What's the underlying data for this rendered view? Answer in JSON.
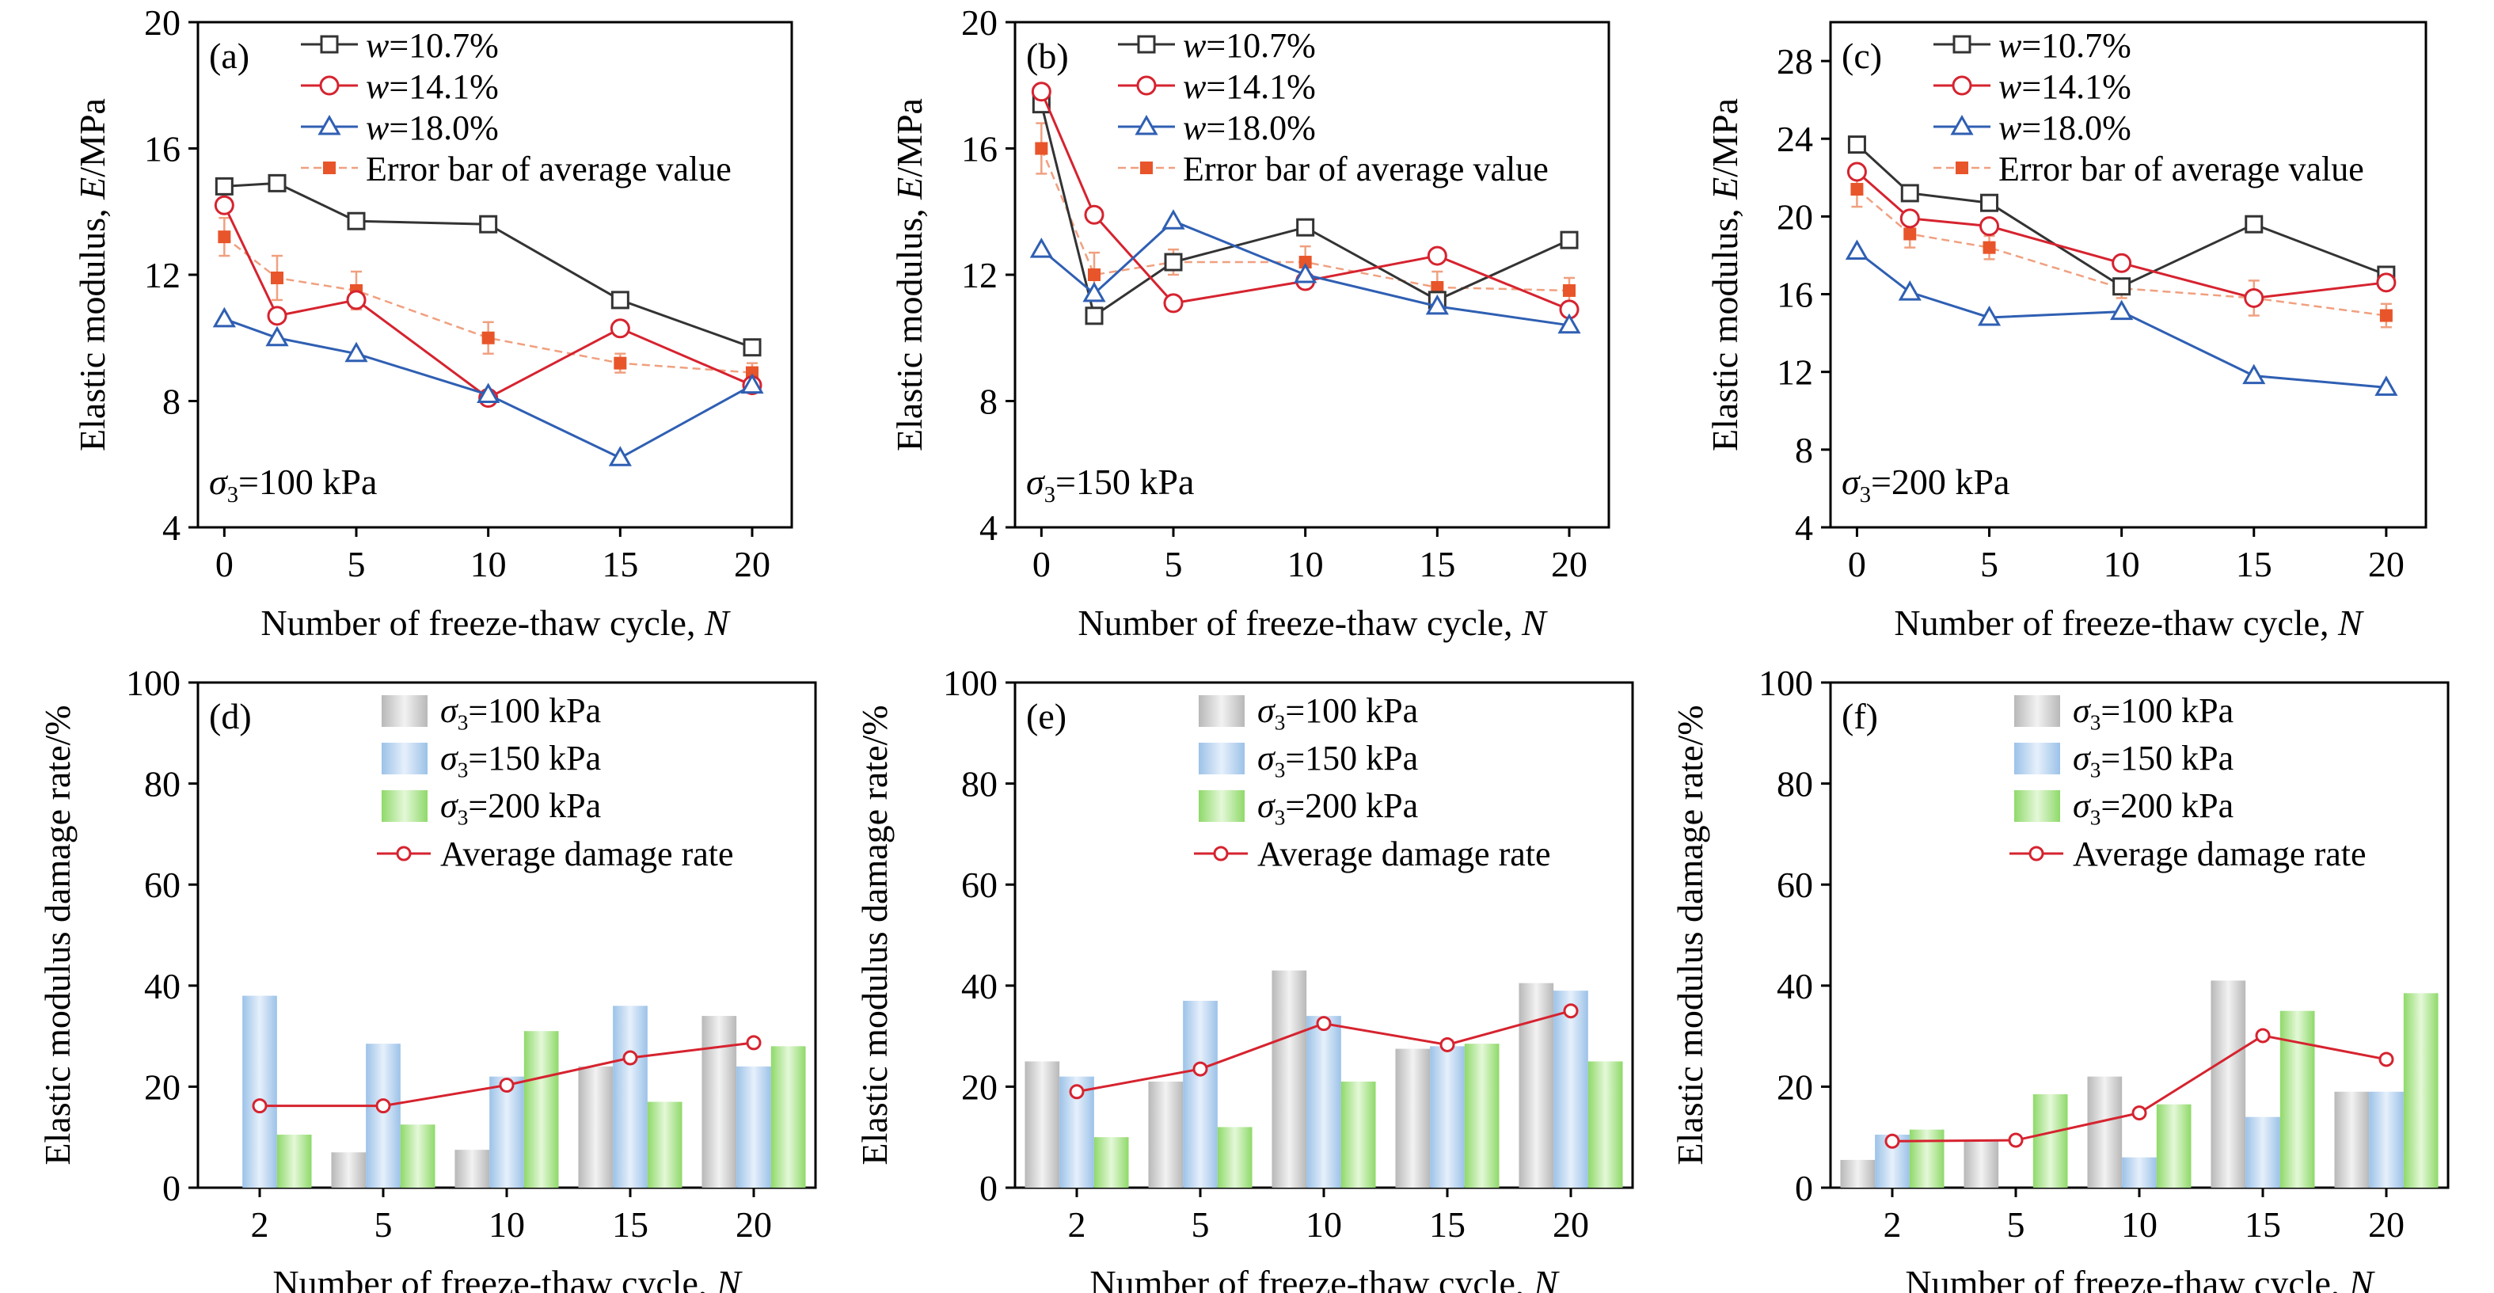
{
  "colors": {
    "w107": "#333333",
    "w141": "#d6232f",
    "w180": "#2f5fb3",
    "avg": "#e8552a",
    "avg_line": "#f0a080",
    "bar100": "#b8b8b8",
    "bar150": "#9cc2e8",
    "bar200": "#8fd96a",
    "damage_line": "#d6232f"
  },
  "chart_data": [
    {
      "type": "line",
      "panel_label": "(a)",
      "annotation": "=100 kPa",
      "xlabel": "Number of freeze-thaw cycle, ",
      "xlabel_italic": "N",
      "ylabel": "Elastic modulus, ",
      "ylabel_italic": "E",
      "ylabel_unit": "/MPa",
      "xlim": [
        -1,
        21.5
      ],
      "ylim": [
        4,
        20
      ],
      "xticks": [
        0,
        5,
        10,
        15,
        20
      ],
      "yticks": [
        4,
        8,
        12,
        16,
        20
      ],
      "x": [
        0,
        2,
        5,
        10,
        15,
        20
      ],
      "series": [
        {
          "name": "=10.7%",
          "marker": "square",
          "values": [
            14.8,
            14.9,
            13.7,
            13.6,
            11.2,
            9.7
          ]
        },
        {
          "name": "=14.1%",
          "marker": "circle",
          "values": [
            14.2,
            10.7,
            11.2,
            8.1,
            10.3,
            8.5
          ]
        },
        {
          "name": "=18.0%",
          "marker": "triangle",
          "values": [
            10.6,
            10.0,
            9.5,
            8.2,
            6.2,
            8.5
          ]
        }
      ],
      "average": {
        "name": "Error bar of average value",
        "values": [
          13.2,
          11.9,
          11.5,
          10.0,
          9.2,
          8.9
        ],
        "errors": [
          0.6,
          0.7,
          0.6,
          0.5,
          0.3,
          0.3
        ]
      }
    },
    {
      "type": "line",
      "panel_label": "(b)",
      "annotation": "=150 kPa",
      "xlabel": "Number of freeze-thaw cycle, ",
      "xlabel_italic": "N",
      "ylabel": "Elastic modulus, ",
      "ylabel_italic": "E",
      "ylabel_unit": "/MPa",
      "xlim": [
        -1,
        21.5
      ],
      "ylim": [
        4,
        20
      ],
      "xticks": [
        0,
        5,
        10,
        15,
        20
      ],
      "yticks": [
        4,
        8,
        12,
        16,
        20
      ],
      "x": [
        0,
        2,
        5,
        10,
        15,
        20
      ],
      "series": [
        {
          "name": "=10.7%",
          "marker": "square",
          "values": [
            17.4,
            10.7,
            12.4,
            13.5,
            11.2,
            13.1
          ]
        },
        {
          "name": "=14.1%",
          "marker": "circle",
          "values": [
            17.8,
            13.9,
            11.1,
            11.8,
            12.6,
            10.9
          ]
        },
        {
          "name": "=18.0%",
          "marker": "triangle",
          "values": [
            12.8,
            11.4,
            13.7,
            12.0,
            11.0,
            10.4
          ]
        }
      ],
      "average": {
        "name": "Error bar of average value",
        "values": [
          16.0,
          12.0,
          12.4,
          12.4,
          11.6,
          11.5
        ],
        "errors": [
          0.8,
          0.7,
          0.4,
          0.5,
          0.5,
          0.4
        ]
      }
    },
    {
      "type": "line",
      "panel_label": "(c)",
      "annotation": "=200 kPa",
      "xlabel": "Number of freeze-thaw cycle, ",
      "xlabel_italic": "N",
      "ylabel": "Elastic modulus, ",
      "ylabel_italic": "E",
      "ylabel_unit": "/MPa",
      "xlim": [
        -1,
        21.5
      ],
      "ylim": [
        4,
        30
      ],
      "xticks": [
        0,
        5,
        10,
        15,
        20
      ],
      "yticks": [
        4,
        8,
        12,
        16,
        20,
        24,
        28
      ],
      "x": [
        0,
        2,
        5,
        10,
        15,
        20
      ],
      "series": [
        {
          "name": "=10.7%",
          "marker": "square",
          "values": [
            23.7,
            21.2,
            20.7,
            16.4,
            19.6,
            17.0
          ]
        },
        {
          "name": "=14.1%",
          "marker": "circle",
          "values": [
            22.3,
            19.9,
            19.5,
            17.6,
            15.8,
            16.6
          ]
        },
        {
          "name": "=18.0%",
          "marker": "triangle",
          "values": [
            18.2,
            16.1,
            14.8,
            15.1,
            11.8,
            11.2
          ]
        }
      ],
      "average": {
        "name": "Error bar of average value",
        "values": [
          21.4,
          19.1,
          18.4,
          16.3,
          15.8,
          14.9
        ],
        "errors": [
          0.9,
          0.7,
          0.6,
          0.5,
          0.9,
          0.6
        ]
      }
    },
    {
      "type": "bar",
      "panel_label": "(d)",
      "xlabel": "Number of freeze-thaw cycle, ",
      "xlabel_italic": "N",
      "ylabel": "Elastic modulus damage rate/%",
      "ylim": [
        0,
        100
      ],
      "yticks": [
        0,
        20,
        40,
        60,
        80,
        100
      ],
      "categories": [
        "2",
        "5",
        "10",
        "15",
        "20"
      ],
      "series": [
        {
          "name": "=100 kPa",
          "values": [
            0,
            7,
            7.5,
            24,
            34
          ]
        },
        {
          "name": "=150 kPa",
          "values": [
            38,
            28.5,
            22,
            36,
            24
          ]
        },
        {
          "name": "=200 kPa",
          "values": [
            10.5,
            12.5,
            31,
            17,
            28
          ]
        }
      ],
      "line": {
        "name": "Average damage rate",
        "values": [
          16.2,
          16.2,
          20.3,
          25.7,
          28.7
        ]
      }
    },
    {
      "type": "bar",
      "panel_label": "(e)",
      "xlabel": "Number of freeze-thaw cycle, ",
      "xlabel_italic": "N",
      "ylabel": "Elastic modulus damage rate/%",
      "ylim": [
        0,
        100
      ],
      "yticks": [
        0,
        20,
        40,
        60,
        80,
        100
      ],
      "categories": [
        "2",
        "5",
        "10",
        "15",
        "20"
      ],
      "series": [
        {
          "name": "=100 kPa",
          "values": [
            25,
            21,
            43,
            27.5,
            40.5
          ]
        },
        {
          "name": "=150 kPa",
          "values": [
            22,
            37,
            34,
            28,
            39
          ]
        },
        {
          "name": "=200 kPa",
          "values": [
            10,
            12,
            21,
            28.5,
            25
          ]
        }
      ],
      "line": {
        "name": "Average damage rate",
        "values": [
          19,
          23.5,
          32.5,
          28.3,
          35
        ]
      }
    },
    {
      "type": "bar",
      "panel_label": "(f)",
      "xlabel": "Number of freeze-thaw cycle, ",
      "xlabel_italic": "N",
      "ylabel": "Elastic modulus damage rate/%",
      "ylim": [
        0,
        100
      ],
      "yticks": [
        0,
        20,
        40,
        60,
        80,
        100
      ],
      "categories": [
        "2",
        "5",
        "10",
        "15",
        "20"
      ],
      "series": [
        {
          "name": "=100 kPa",
          "values": [
            5.5,
            9.5,
            22,
            41,
            19
          ]
        },
        {
          "name": "=150 kPa",
          "values": [
            10.5,
            0,
            6,
            14,
            19
          ]
        },
        {
          "name": "=200 kPa",
          "values": [
            11.5,
            18.5,
            16.5,
            35,
            38.5
          ]
        }
      ],
      "line": {
        "name": "Average damage rate",
        "values": [
          9.2,
          9.4,
          14.8,
          30.1,
          25.4
        ]
      }
    }
  ]
}
